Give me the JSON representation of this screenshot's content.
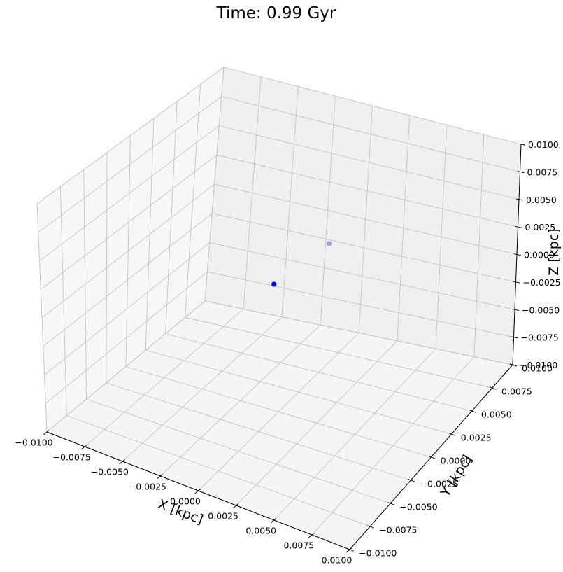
{
  "chart_data": {
    "type": "scatter",
    "title": "Time: 0.99 Gyr",
    "xlabel": "X [kpc]",
    "ylabel": "Y [kpc]",
    "zlabel": "Z [kpc]",
    "xlim": [
      -0.01,
      0.01
    ],
    "ylim": [
      -0.01,
      0.01
    ],
    "zlim": [
      -0.01,
      0.01
    ],
    "ticks": [
      -0.01,
      -0.0075,
      -0.005,
      -0.0025,
      0.0,
      0.0025,
      0.005,
      0.0075,
      0.01
    ],
    "tick_labels": [
      "−0.0100",
      "−0.0075",
      "−0.0050",
      "−0.0025",
      "0.0000",
      "0.0025",
      "0.0050",
      "0.0075",
      "0.0100"
    ],
    "grid": true,
    "series": [
      {
        "color": "#0000ff",
        "points": [
          {
            "x": -0.001,
            "y": 0.001,
            "z": 0.0,
            "alpha": 1.0
          },
          {
            "x": -0.0005,
            "y": 0.0066,
            "z": 0.0,
            "alpha": 0.35
          }
        ]
      }
    ]
  }
}
